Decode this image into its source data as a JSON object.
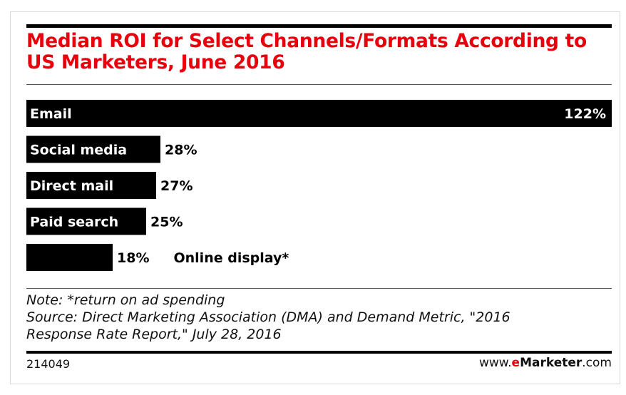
{
  "header": {
    "title_line1": "Median ROI for Select Channels/Formats According to",
    "title_line2": "US Marketers, June 2016"
  },
  "chart_data": {
    "type": "bar",
    "orientation": "horizontal",
    "title": "Median ROI for Select Channels/Formats According to US Marketers, June 2016",
    "categories": [
      "Email",
      "Social media",
      "Direct mail",
      "Paid search",
      "Online display*"
    ],
    "values": [
      122,
      28,
      27,
      25,
      18
    ],
    "value_labels": [
      "122%",
      "28%",
      "27%",
      "25%",
      "18%"
    ],
    "unit": "%",
    "xlim": [
      0,
      122
    ],
    "grid": false,
    "legend": "none",
    "bar_color": "#000000",
    "label_color_inside": "#ffffff",
    "label_color_outside": "#000000"
  },
  "footer": {
    "note": "Note: *return on ad spending",
    "source_line1": "Source: Direct Marketing Association (DMA) and Demand Metric, \"2016",
    "source_line2": "Response Rate Report,\" July 28, 2016",
    "chart_id": "214049",
    "brand_prefix": "www.",
    "brand_accent": "e",
    "brand_name": "Marketer",
    "brand_suffix": ".com"
  },
  "colors": {
    "title": "#e8000d",
    "brand_accent": "#e8000d"
  }
}
